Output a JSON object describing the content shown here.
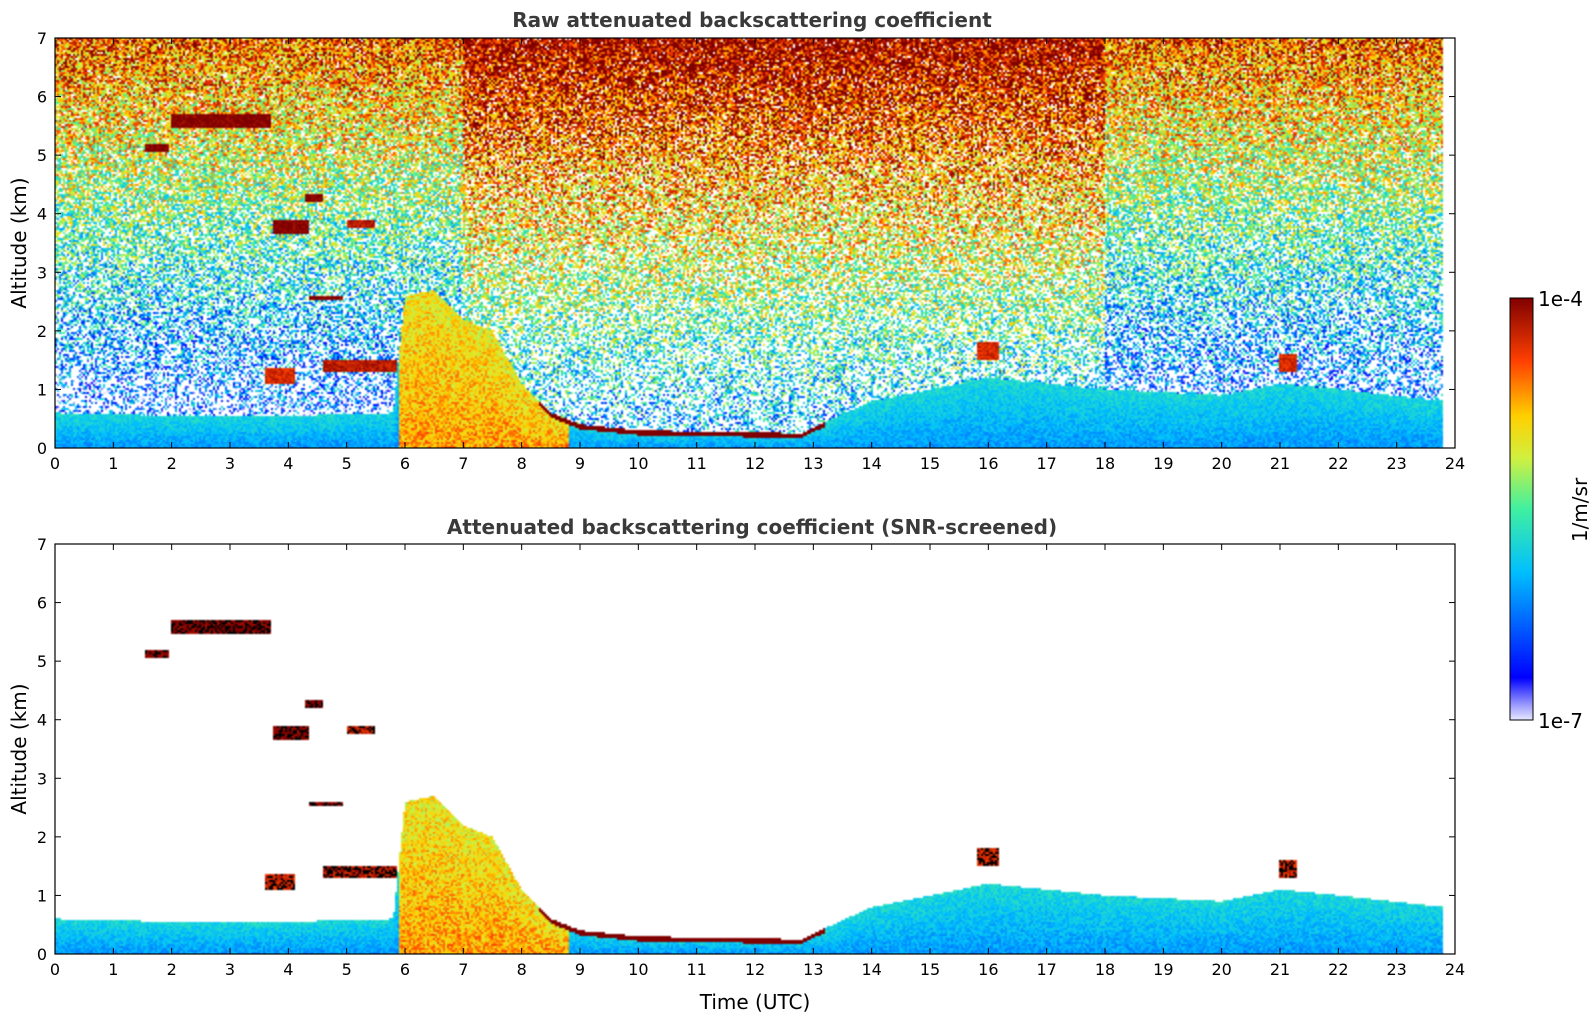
{
  "chart_data": [
    {
      "type": "heatmap",
      "title": "Raw attenuated backscattering coefficient",
      "xlabel": "",
      "ylabel": "Altitude (km)",
      "xlim": [
        0,
        24
      ],
      "ylim": [
        0,
        7
      ],
      "x_ticks": [
        "0",
        "1",
        "2",
        "3",
        "4",
        "5",
        "6",
        "7",
        "8",
        "9",
        "10",
        "11",
        "12",
        "13",
        "14",
        "15",
        "16",
        "17",
        "18",
        "19",
        "20",
        "21",
        "22",
        "23",
        "24"
      ],
      "y_ticks": [
        "0",
        "1",
        "2",
        "3",
        "4",
        "5",
        "6",
        "7"
      ],
      "data_end_time": 23.8,
      "colorscale": "jet",
      "noise_background": true,
      "boundary_layer_top": [
        [
          0,
          0.6
        ],
        [
          2,
          0.55
        ],
        [
          4,
          0.55
        ],
        [
          5.8,
          0.6
        ],
        [
          6,
          2.6
        ],
        [
          6.5,
          2.7
        ],
        [
          7,
          2.2
        ],
        [
          7.5,
          2.0
        ],
        [
          8,
          1.1
        ],
        [
          8.5,
          0.6
        ],
        [
          9,
          0.4
        ],
        [
          10,
          0.3
        ],
        [
          12.8,
          0.25
        ],
        [
          13,
          0.35
        ],
        [
          14,
          0.8
        ],
        [
          15,
          1.0
        ],
        [
          16,
          1.2
        ],
        [
          17,
          1.1
        ],
        [
          18,
          1.0
        ],
        [
          20,
          0.9
        ],
        [
          21,
          1.1
        ],
        [
          22,
          1.0
        ],
        [
          23.8,
          0.8
        ]
      ],
      "cloud_layers": [
        {
          "t0": 2.0,
          "t1": 3.7,
          "z0": 5.45,
          "z1": 5.7,
          "value": -4.0
        },
        {
          "t0": 1.55,
          "t1": 1.95,
          "z0": 5.05,
          "z1": 5.2,
          "value": -4.0
        },
        {
          "t0": 3.75,
          "t1": 4.35,
          "z0": 3.65,
          "z1": 3.9,
          "value": -4.0
        },
        {
          "t0": 4.3,
          "t1": 4.6,
          "z0": 4.2,
          "z1": 4.35,
          "value": -4.0
        },
        {
          "t0": 5.0,
          "t1": 5.5,
          "z0": 3.75,
          "z1": 3.9,
          "value": -4.2
        },
        {
          "t0": 4.35,
          "t1": 4.95,
          "z0": 2.52,
          "z1": 2.6,
          "value": -4.0
        },
        {
          "t0": 3.6,
          "t1": 4.1,
          "z0": 1.1,
          "z1": 1.35,
          "value": -4.3
        },
        {
          "t0": 4.6,
          "t1": 5.85,
          "z0": 1.3,
          "z1": 1.5,
          "value": -4.2
        },
        {
          "t0": 15.8,
          "t1": 16.2,
          "z0": 1.5,
          "z1": 1.8,
          "value": -4.3
        },
        {
          "t0": 21.0,
          "t1": 21.3,
          "z0": 1.3,
          "z1": 1.6,
          "value": -4.3
        }
      ]
    },
    {
      "type": "heatmap",
      "title": "Attenuated backscattering coefficient (SNR-screened)",
      "xlabel": "Time (UTC)",
      "ylabel": "Altitude (km)",
      "xlim": [
        0,
        24
      ],
      "ylim": [
        0,
        7
      ],
      "x_ticks": [
        "0",
        "1",
        "2",
        "3",
        "4",
        "5",
        "6",
        "7",
        "8",
        "9",
        "10",
        "11",
        "12",
        "13",
        "14",
        "15",
        "16",
        "17",
        "18",
        "19",
        "20",
        "21",
        "22",
        "23",
        "24"
      ],
      "y_ticks": [
        "0",
        "1",
        "2",
        "3",
        "4",
        "5",
        "6",
        "7"
      ],
      "data_end_time": 23.8,
      "colorscale": "jet",
      "noise_background": false
    }
  ],
  "colorbar": {
    "min_label": "1e-7",
    "max_label": "1e-4",
    "unit_label": "1/m/sr",
    "log_min": -7,
    "log_max": -4
  }
}
